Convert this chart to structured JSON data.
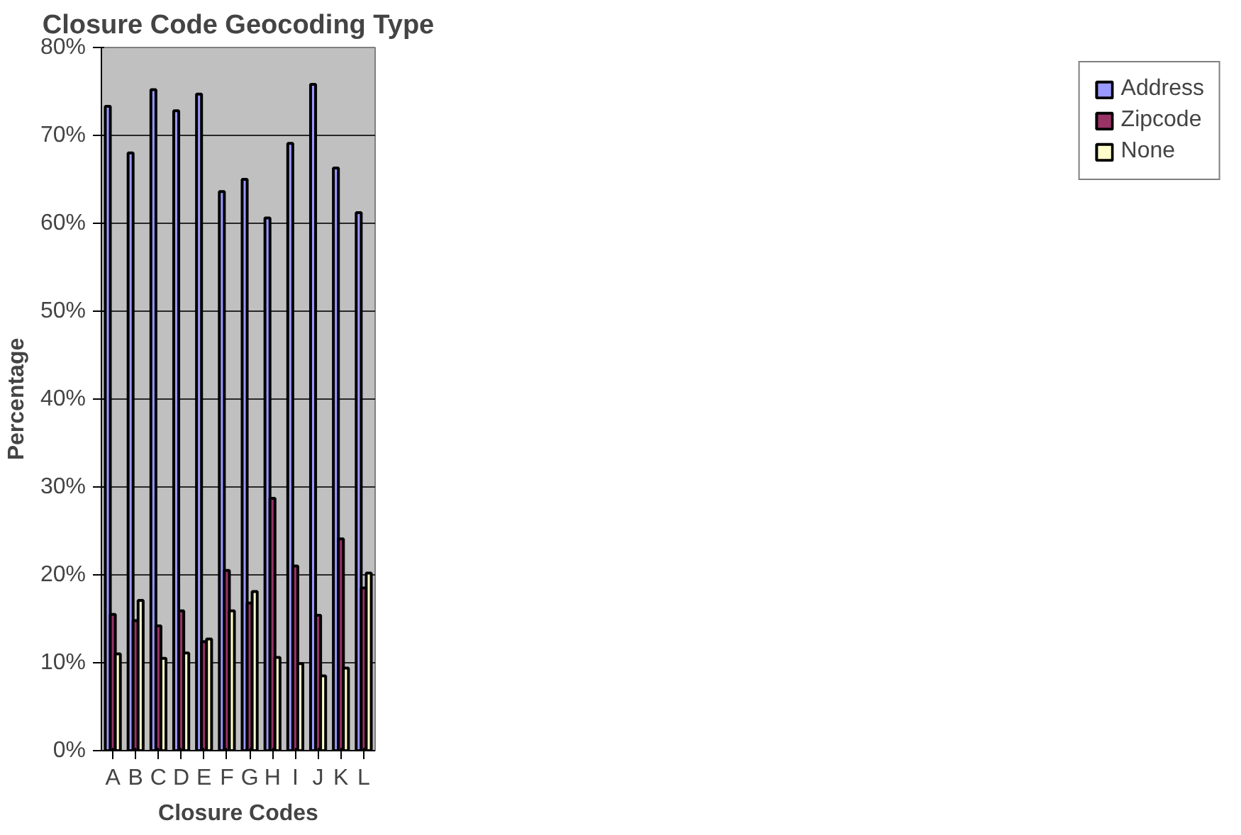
{
  "chart_data": {
    "type": "bar",
    "title": "Closure Code Geocoding Type",
    "xlabel": "Closure Codes",
    "ylabel": "Percentage",
    "categories": [
      "A",
      "B",
      "C",
      "D",
      "E",
      "F",
      "G",
      "H",
      "I",
      "J",
      "K",
      "L"
    ],
    "series": [
      {
        "name": "Address",
        "color": "#9999ff",
        "values": [
          73.3,
          68,
          75.2,
          72.8,
          74.7,
          63.6,
          65,
          60.6,
          69.1,
          75.8,
          66.3,
          61.2
        ]
      },
      {
        "name": "Zipcode",
        "color": "#993366",
        "values": [
          15.5,
          14.8,
          14.2,
          15.9,
          12.4,
          20.5,
          16.8,
          28.7,
          21,
          15.4,
          24.1,
          18.5
        ]
      },
      {
        "name": "None",
        "color": "#ffffcc",
        "values": [
          11,
          17.1,
          10.5,
          11.1,
          12.7,
          15.9,
          18.1,
          10.6,
          9.9,
          8.5,
          9.4,
          20.2
        ]
      }
    ],
    "ylim": [
      0,
      80
    ],
    "yticks": [
      {
        "value": 0,
        "label": "0%"
      },
      {
        "value": 10,
        "label": "10%"
      },
      {
        "value": 20,
        "label": "20%"
      },
      {
        "value": 30,
        "label": "30%"
      },
      {
        "value": 40,
        "label": "40%"
      },
      {
        "value": 50,
        "label": "50%"
      },
      {
        "value": 60,
        "label": "60%"
      },
      {
        "value": 70,
        "label": "70%"
      },
      {
        "value": 80,
        "label": "80%"
      }
    ],
    "grid": "y",
    "legend": "right"
  }
}
